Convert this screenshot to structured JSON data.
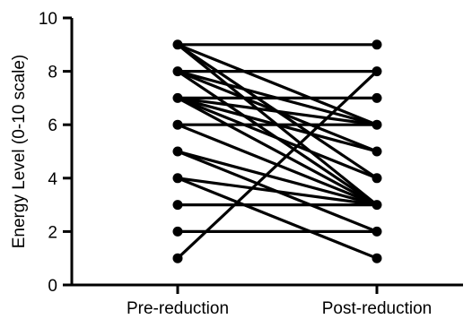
{
  "chart_data": {
    "type": "line",
    "categories": [
      "Pre-reduction",
      "Post-reduction"
    ],
    "ylabel": "Energy  Level (0-10 scale)",
    "xlabel": "",
    "ylim": [
      0,
      10
    ],
    "yticks": [
      0,
      2,
      4,
      6,
      8,
      10
    ],
    "grid": false,
    "legend": "none",
    "line_color": "#000000",
    "pairs": [
      {
        "pre": 9,
        "post": 9
      },
      {
        "pre": 9,
        "post": 6
      },
      {
        "pre": 9,
        "post": 3
      },
      {
        "pre": 9,
        "post": 4
      },
      {
        "pre": 8,
        "post": 8
      },
      {
        "pre": 8,
        "post": 6
      },
      {
        "pre": 8,
        "post": 5
      },
      {
        "pre": 8,
        "post": 3
      },
      {
        "pre": 7,
        "post": 7
      },
      {
        "pre": 7,
        "post": 5
      },
      {
        "pre": 7,
        "post": 4
      },
      {
        "pre": 7,
        "post": 6
      },
      {
        "pre": 7,
        "post": 3
      },
      {
        "pre": 6,
        "post": 6
      },
      {
        "pre": 6,
        "post": 3
      },
      {
        "pre": 5,
        "post": 2
      },
      {
        "pre": 5,
        "post": 3
      },
      {
        "pre": 4,
        "post": 3
      },
      {
        "pre": 3,
        "post": 3
      },
      {
        "pre": 2,
        "post": 2
      },
      {
        "pre": 1,
        "post": 8
      },
      {
        "pre": 4,
        "post": 1
      }
    ]
  }
}
